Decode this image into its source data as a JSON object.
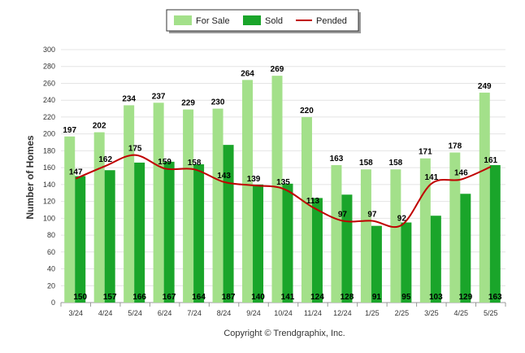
{
  "chart_data": {
    "type": "bar",
    "categories": [
      "3/24",
      "4/24",
      "5/24",
      "6/24",
      "7/24",
      "8/24",
      "9/24",
      "10/24",
      "11/24",
      "12/24",
      "1/25",
      "2/25",
      "3/25",
      "4/25",
      "5/25"
    ],
    "series": [
      {
        "name": "For Sale",
        "type": "bar",
        "color": "#a3e08a",
        "values": [
          197,
          202,
          234,
          237,
          229,
          230,
          264,
          269,
          220,
          163,
          158,
          158,
          171,
          178,
          249
        ]
      },
      {
        "name": "Sold",
        "type": "bar",
        "color": "#1aa52a",
        "values": [
          150,
          157,
          166,
          167,
          164,
          187,
          140,
          141,
          124,
          128,
          91,
          95,
          103,
          129,
          163
        ]
      },
      {
        "name": "Pended",
        "type": "line",
        "color": "#c00000",
        "values": [
          147,
          162,
          175,
          159,
          158,
          143,
          139,
          135,
          113,
          97,
          97,
          92,
          141,
          146,
          161
        ]
      }
    ],
    "ylabel": "Number of Homes",
    "xlabel": "",
    "ylim": [
      0,
      300
    ],
    "yticks": [
      0,
      20,
      40,
      60,
      80,
      100,
      120,
      140,
      160,
      180,
      200,
      220,
      240,
      260,
      280,
      300
    ],
    "grid": true,
    "legend_position": "top-center"
  },
  "legend": {
    "for_sale": "For Sale",
    "sold": "Sold",
    "pended": "Pended"
  },
  "copyright": "Copyright © Trendgraphix, Inc."
}
